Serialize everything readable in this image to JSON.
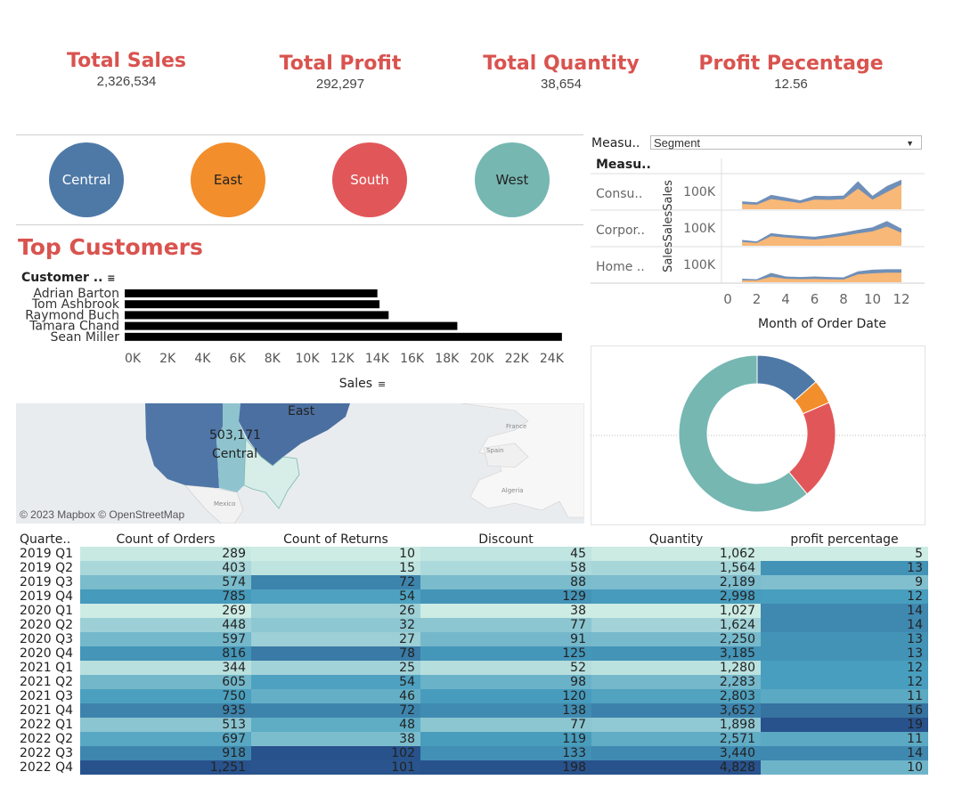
{
  "kpis": [
    {
      "title": "Total Sales",
      "value": "2,326,534"
    },
    {
      "title": "Total Profit",
      "value": "292,297"
    },
    {
      "title": "Total Quantity",
      "value": "38,654"
    },
    {
      "title": "Profit Pecentage",
      "value": "12.56"
    }
  ],
  "regions": [
    {
      "label": "Central",
      "color": "#4e79a7",
      "text_color": "#ffffff"
    },
    {
      "label": "East",
      "color": "#f28e2b",
      "text_color": "#222222"
    },
    {
      "label": "South",
      "color": "#e15759",
      "text_color": "#ffffff"
    },
    {
      "label": "West",
      "color": "#76b7b2",
      "text_color": "#222222"
    }
  ],
  "top_customers": {
    "title": "Top Customers",
    "y_header": "Customer ..",
    "sort_icon": "sort-icon",
    "x_label": "Sales",
    "bar_color": "#000000"
  },
  "map": {
    "credit": "© 2023 Mapbox © OpenStreetMap",
    "region_label_east": "East",
    "region_value": "503,171",
    "region_label_central": "Central",
    "basemap_labels": [
      "France",
      "Spain",
      "Algeria",
      "Mexico"
    ]
  },
  "segment_panel": {
    "filter_label": "Measu..",
    "filter_value": "Segment",
    "col_header": "Measu..",
    "row_labels": [
      "Consu..",
      "Corpor..",
      "Home .."
    ],
    "y_axis_title": "SalesSalesSales",
    "tick_label": "100K",
    "x_ticks": [
      "0",
      "2",
      "4",
      "6",
      "8",
      "10",
      "12"
    ],
    "x_label": "Month of Order Date",
    "area_color": "#f8b878",
    "top_color": "#6f8fb8"
  },
  "donut_colors": [
    "#4e79a7",
    "#f28e2b",
    "#e15759",
    "#76b7b2"
  ],
  "table": {
    "headers": [
      "Quarte..",
      "Count of Orders",
      "Count of Returns",
      "Discount",
      "Quantity",
      "profit percentage"
    ],
    "rows": [
      [
        "2019 Q1",
        "289",
        "10",
        "45",
        "1,062",
        "5"
      ],
      [
        "2019 Q2",
        "403",
        "15",
        "58",
        "1,564",
        "13"
      ],
      [
        "2019 Q3",
        "574",
        "72",
        "88",
        "2,189",
        "9"
      ],
      [
        "2019 Q4",
        "785",
        "54",
        "129",
        "2,998",
        "12"
      ],
      [
        "2020 Q1",
        "269",
        "26",
        "38",
        "1,027",
        "14"
      ],
      [
        "2020 Q2",
        "448",
        "32",
        "77",
        "1,624",
        "14"
      ],
      [
        "2020 Q3",
        "597",
        "27",
        "91",
        "2,250",
        "13"
      ],
      [
        "2020 Q4",
        "816",
        "78",
        "125",
        "3,185",
        "13"
      ],
      [
        "2021 Q1",
        "344",
        "25",
        "52",
        "1,280",
        "12"
      ],
      [
        "2021 Q2",
        "605",
        "54",
        "98",
        "2,283",
        "12"
      ],
      [
        "2021 Q3",
        "750",
        "46",
        "120",
        "2,803",
        "11"
      ],
      [
        "2021 Q4",
        "935",
        "72",
        "138",
        "3,652",
        "16"
      ],
      [
        "2022 Q1",
        "513",
        "48",
        "77",
        "1,898",
        "19"
      ],
      [
        "2022 Q2",
        "697",
        "38",
        "119",
        "2,571",
        "11"
      ],
      [
        "2022 Q3",
        "918",
        "102",
        "133",
        "3,440",
        "14"
      ],
      [
        "2022 Q4",
        "1,251",
        "101",
        "198",
        "4,828",
        "10"
      ]
    ]
  },
  "chart_data": [
    {
      "type": "bar",
      "orientation": "horizontal",
      "categories": [
        "Adrian Barton",
        "Tom Ashbrook",
        "Raymond Buch",
        "Tamara Chand",
        "Sean Miller"
      ],
      "values": [
        14473,
        14595,
        15117,
        19052,
        25043
      ],
      "xlabel": "Sales",
      "xlim": [
        0,
        25000
      ],
      "xticks": [
        "0K",
        "2K",
        "4K",
        "6K",
        "8K",
        "10K",
        "12K",
        "14K",
        "16K",
        "18K",
        "20K",
        "22K",
        "24K"
      ]
    },
    {
      "type": "area",
      "x": [
        1,
        2,
        3,
        4,
        5,
        6,
        7,
        8,
        9,
        10,
        11,
        12
      ],
      "xlabel": "Month of Order Date",
      "xlim": [
        0,
        12
      ],
      "ylim": [
        0,
        260000
      ],
      "panels": [
        {
          "name": "Consu..",
          "series": [
            {
              "values": [
                38000,
                33000,
                75000,
                60000,
                45000,
                71000,
                68000,
                73000,
                150000,
                70000,
                125000,
                180000
              ]
            },
            {
              "values": [
                58000,
                50000,
                105000,
                86000,
                65000,
                98000,
                96000,
                100000,
                205000,
                98000,
                170000,
                215000
              ]
            }
          ]
        },
        {
          "name": "Corpor..",
          "series": [
            {
              "values": [
                28000,
                20000,
                70000,
                60000,
                52000,
                45000,
                58000,
                72000,
                90000,
                105000,
                140000,
                95000
              ]
            },
            {
              "values": [
                42000,
                32000,
                92000,
                80000,
                72000,
                66000,
                80000,
                96000,
                116000,
                135000,
                180000,
                125000
              ]
            }
          ]
        },
        {
          "name": "Home ..",
          "series": [
            {
              "values": [
                15000,
                13000,
                40000,
                25000,
                23000,
                24000,
                22000,
                20000,
                58000,
                65000,
                70000,
                70000
              ]
            },
            {
              "values": [
                26000,
                22000,
                68000,
                42000,
                38000,
                42000,
                38000,
                36000,
                80000,
                92000,
                95000,
                95000
              ]
            }
          ]
        }
      ]
    },
    {
      "type": "pie",
      "style": "donut",
      "labels": [
        "Central",
        "East",
        "South",
        "West"
      ],
      "values": [
        13.5,
        5,
        20.5,
        61
      ]
    }
  ]
}
